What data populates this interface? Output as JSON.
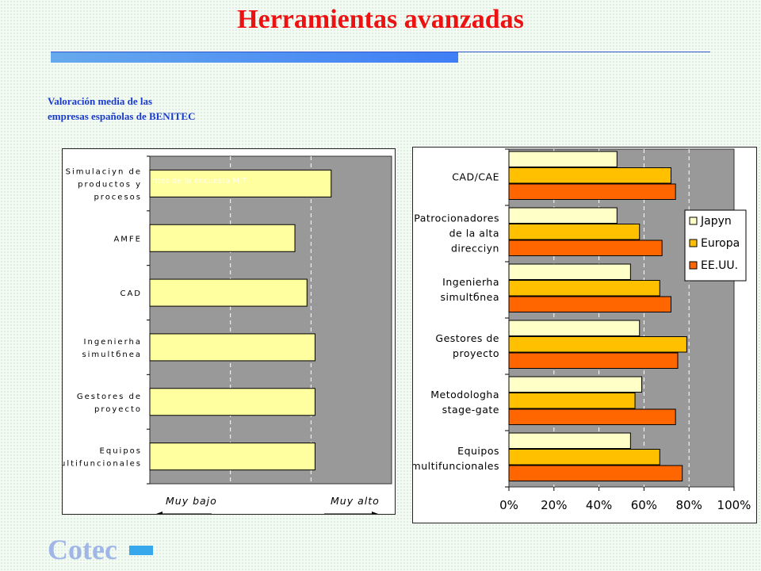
{
  "title": "Herramientas avanzadas",
  "subtitle_lines": [
    "Valoración media de las",
    "empresas españolas de BENITEC"
  ],
  "brand": "Cotec",
  "colors": {
    "title": "#ee1111",
    "subtitle": "#1a3bcc",
    "plot_bg": "#999999",
    "bar_light": "#ffffa0",
    "japon": "#ffffc8",
    "europa": "#ffc000",
    "eeuu": "#ff6600",
    "brand": "#9fb6e6",
    "brand_mark": "#38a8ec"
  },
  "chart_data": [
    {
      "type": "bar",
      "orientation": "horizontal",
      "categories": [
        [
          "Simulaciyn de",
          "productos y",
          "procesos"
        ],
        [
          "AMFE"
        ],
        [
          "CAD"
        ],
        [
          "Ingenierha",
          "simultбnea"
        ],
        [
          "Gestores de",
          "proyecto"
        ],
        [
          "Equipos",
          "multifuncionales"
        ]
      ],
      "values": [
        3.25,
        2.8,
        2.95,
        3.05,
        3.05,
        3.05
      ],
      "xlim": [
        1,
        4
      ],
      "low_label": "Muy bajo",
      "high_label": "Muy alto",
      "overlay_text": "ntes de la encuesta MIT",
      "grid": "vertical-dashed"
    },
    {
      "type": "bar",
      "orientation": "horizontal",
      "categories": [
        [
          "CAD/CAE"
        ],
        [
          "Patrocionadores",
          "de la alta",
          "direcciyn"
        ],
        [
          "Ingenierha",
          "simultбnea"
        ],
        [
          "Gestores de",
          "proyecto"
        ],
        [
          "Metodologha",
          "stage-gate"
        ],
        [
          "Equipos",
          "multifuncionales"
        ]
      ],
      "series": [
        {
          "name": "Japуn",
          "values": [
            48,
            48,
            54,
            58,
            59,
            54
          ]
        },
        {
          "name": "Europa",
          "values": [
            72,
            58,
            67,
            79,
            56,
            67
          ]
        },
        {
          "name": "EE.UU.",
          "values": [
            74,
            68,
            72,
            75,
            74,
            77
          ]
        }
      ],
      "xticks": [
        "0%",
        "20%",
        "40%",
        "60%",
        "80%",
        "100%"
      ],
      "xlim": [
        0,
        100
      ],
      "legend": "right",
      "grid": "vertical-dashed"
    }
  ]
}
